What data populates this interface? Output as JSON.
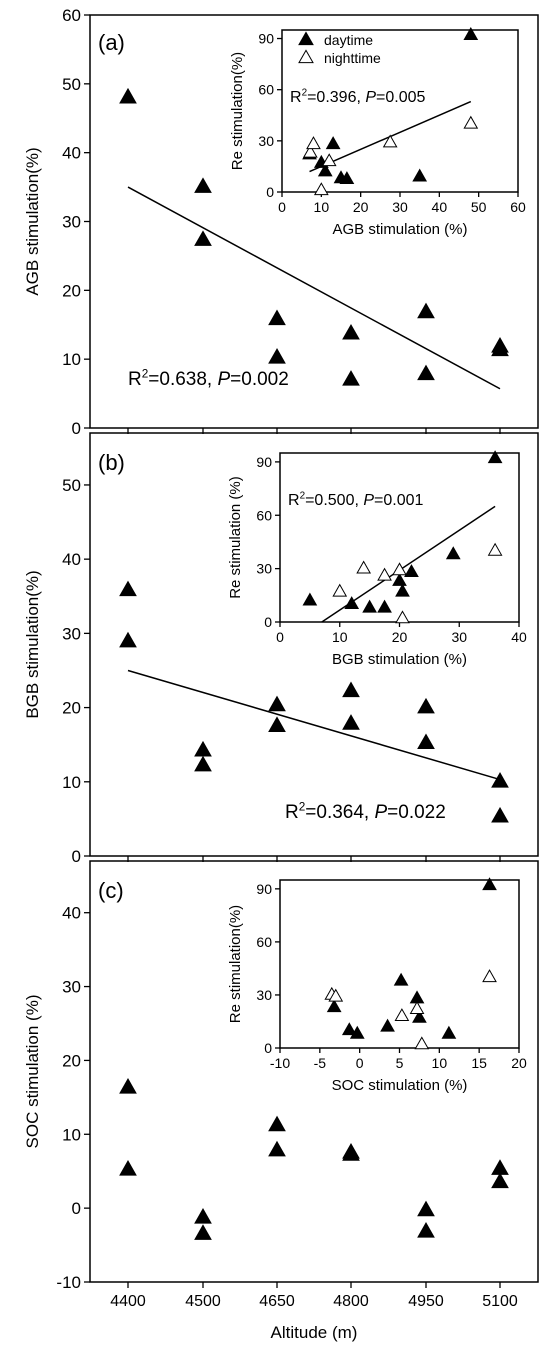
{
  "chart_data": [
    {
      "type": "scatter",
      "panel_label": "(a)",
      "xlabel": "",
      "ylabel": "AGB stimulation(%)",
      "xlim": [
        4330,
        5150
      ],
      "ylim": [
        0,
        60
      ],
      "x_ticks": [
        4400,
        4500,
        4650,
        4800,
        4950,
        5100
      ],
      "x_tick_labels": [],
      "x_positions": {
        "4400": 4400,
        "4500": 4500,
        "4650": 4650,
        "4800": 4800,
        "4950": 4950,
        "5100": 5100
      },
      "y_ticks": [
        0,
        10,
        20,
        30,
        40,
        50,
        60
      ],
      "y_tick_labels": [
        "0",
        "10",
        "20",
        "30",
        "40",
        "50",
        "60"
      ],
      "series": [
        {
          "marker": "filled",
          "points": [
            [
              4400,
              48
            ],
            [
              4500,
              35
            ],
            [
              4500,
              27.3
            ],
            [
              4650,
              15.8
            ],
            [
              4650,
              10.2
            ],
            [
              4800,
              13.7
            ],
            [
              4800,
              7
            ],
            [
              4950,
              16.8
            ],
            [
              4950,
              7.8
            ],
            [
              5100,
              11.8
            ],
            [
              5100,
              11.3
            ]
          ]
        }
      ],
      "fit": {
        "x": [
          4400,
          5100
        ],
        "y": [
          35,
          5.7
        ]
      },
      "annotation": {
        "r2_label": "R",
        "r2_sup": "2",
        "r2_rest": "=0.638,",
        "p_label": "P",
        "p_rest": "=0.002"
      },
      "inset": {
        "xlabel": "AGB stimulation (%)",
        "ylabel": "Re stimulation(%)",
        "xlim": [
          0,
          60
        ],
        "ylim": [
          0,
          95
        ],
        "x_ticks": [
          0,
          10,
          20,
          30,
          40,
          50,
          60
        ],
        "x_tick_labels": [
          "0",
          "10",
          "20",
          "30",
          "40",
          "50",
          "60"
        ],
        "y_ticks": [
          0,
          30,
          60,
          90
        ],
        "y_tick_labels": [
          "0",
          "30",
          "60",
          "90"
        ],
        "legend": [
          {
            "marker": "filled",
            "label": "daytime"
          },
          {
            "marker": "open",
            "label": "nighttime"
          }
        ],
        "series": [
          {
            "marker": "filled",
            "points": [
              [
                7,
                22
              ],
              [
                10,
                17
              ],
              [
                11,
                12
              ],
              [
                13,
                28
              ],
              [
                15,
                8
              ],
              [
                16.5,
                7.5
              ],
              [
                35,
                9
              ],
              [
                48,
                92
              ]
            ]
          },
          {
            "marker": "open",
            "points": [
              [
                7.2,
                23
              ],
              [
                8,
                28
              ],
              [
                10,
                1
              ],
              [
                12,
                18
              ],
              [
                27.5,
                29
              ],
              [
                48,
                40
              ]
            ]
          }
        ],
        "fit": {
          "x": [
            7,
            48
          ],
          "y": [
            12,
            53
          ]
        },
        "annotation": {
          "r2_label": "R",
          "r2_sup": "2",
          "r2_rest": "=0.396,",
          "p_label": "P",
          "p_rest": "=0.005"
        }
      }
    },
    {
      "type": "scatter",
      "panel_label": "(b)",
      "xlabel": "",
      "ylabel": "BGB stimulation(%)",
      "xlim": [
        4330,
        5150
      ],
      "ylim": [
        0,
        57
      ],
      "x_ticks": [
        4400,
        4500,
        4650,
        4800,
        4950,
        5100
      ],
      "x_tick_labels": [],
      "y_ticks": [
        0,
        10,
        20,
        30,
        40,
        50
      ],
      "y_tick_labels": [
        "0",
        "10",
        "20",
        "30",
        "40",
        "50"
      ],
      "series": [
        {
          "marker": "filled",
          "points": [
            [
              4400,
              35.8
            ],
            [
              4400,
              28.9
            ],
            [
              4500,
              14.2
            ],
            [
              4500,
              12.2
            ],
            [
              4650,
              20.3
            ],
            [
              4650,
              17.5
            ],
            [
              4800,
              22.2
            ],
            [
              4800,
              17.8
            ],
            [
              4950,
              20
            ],
            [
              4950,
              15.2
            ],
            [
              5100,
              10
            ],
            [
              5100,
              5.3
            ]
          ]
        }
      ],
      "fit": {
        "x": [
          4400,
          5100
        ],
        "y": [
          25,
          10.3
        ]
      },
      "annotation": {
        "r2_label": "R",
        "r2_sup": "2",
        "r2_rest": "=0.364,",
        "p_label": "P",
        "p_rest": "=0.022"
      },
      "inset": {
        "xlabel": "BGB stimulation (%)",
        "ylabel": "Re stimulation (%)",
        "xlim": [
          0,
          40
        ],
        "ylim": [
          0,
          95
        ],
        "x_ticks": [
          0,
          10,
          20,
          30,
          40
        ],
        "x_tick_labels": [
          "0",
          "10",
          "20",
          "30",
          "40"
        ],
        "y_ticks": [
          0,
          30,
          60,
          90
        ],
        "y_tick_labels": [
          "0",
          "30",
          "60",
          "90"
        ],
        "legend": [],
        "series": [
          {
            "marker": "filled",
            "points": [
              [
                5,
                12
              ],
              [
                12,
                10
              ],
              [
                15,
                8
              ],
              [
                17.5,
                8
              ],
              [
                20,
                23
              ],
              [
                20.5,
                17
              ],
              [
                22,
                28
              ],
              [
                29,
                38
              ],
              [
                36,
                92
              ]
            ]
          },
          {
            "marker": "open",
            "points": [
              [
                10,
                17
              ],
              [
                14,
                30
              ],
              [
                17.5,
                26
              ],
              [
                20,
                29
              ],
              [
                20.5,
                2
              ],
              [
                36,
                40
              ]
            ]
          }
        ],
        "fit": {
          "x": [
            7,
            36
          ],
          "y": [
            0,
            65
          ]
        },
        "annotation": {
          "r2_label": "R",
          "r2_sup": "2",
          "r2_rest": "=0.500,",
          "p_label": "P",
          "p_rest": "=0.001"
        }
      }
    },
    {
      "type": "scatter",
      "panel_label": "(c)",
      "xlabel": "Altitude (m)",
      "ylabel": "SOC stimulation (%)",
      "xlim": [
        4330,
        5150
      ],
      "ylim": [
        -10,
        47
      ],
      "x_ticks": [
        4400,
        4500,
        4650,
        4800,
        4950,
        5100
      ],
      "x_tick_labels": [
        "4400",
        "4500",
        "4650",
        "4800",
        "4950",
        "5100"
      ],
      "y_ticks": [
        -10,
        0,
        10,
        20,
        30,
        40
      ],
      "y_tick_labels": [
        "-10",
        "0",
        "10",
        "20",
        "30",
        "40"
      ],
      "series": [
        {
          "marker": "filled",
          "points": [
            [
              4400,
              16.3
            ],
            [
              4400,
              5.2
            ],
            [
              4500,
              -1.3
            ],
            [
              4500,
              -3.5
            ],
            [
              4650,
              11.2
            ],
            [
              4650,
              7.8
            ],
            [
              4800,
              7.5
            ],
            [
              4800,
              7.2
            ],
            [
              4950,
              -0.3
            ],
            [
              4950,
              -3.2
            ],
            [
              5100,
              5.3
            ],
            [
              5100,
              3.5
            ]
          ]
        }
      ],
      "fit": null,
      "annotation": null,
      "inset": {
        "xlabel": "SOC stimulation (%)",
        "ylabel": "Re stimulation(%)",
        "xlim": [
          -10,
          20
        ],
        "ylim": [
          0,
          95
        ],
        "x_ticks": [
          -10,
          -5,
          0,
          5,
          10,
          15,
          20
        ],
        "x_tick_labels": [
          "-10",
          "-5",
          "0",
          "5",
          "10",
          "15",
          "20"
        ],
        "y_ticks": [
          0,
          30,
          60,
          90
        ],
        "y_tick_labels": [
          "0",
          "30",
          "60",
          "90"
        ],
        "legend": [],
        "series": [
          {
            "marker": "filled",
            "points": [
              [
                -3.2,
                23
              ],
              [
                -1.3,
                10
              ],
              [
                -0.3,
                8
              ],
              [
                3.5,
                12
              ],
              [
                5.2,
                38
              ],
              [
                7.2,
                28
              ],
              [
                7.5,
                17
              ],
              [
                11.2,
                8
              ],
              [
                16.3,
                92
              ]
            ]
          },
          {
            "marker": "open",
            "points": [
              [
                -3.5,
                30
              ],
              [
                -3,
                29
              ],
              [
                5.3,
                18
              ],
              [
                7.2,
                22
              ],
              [
                7.8,
                2
              ],
              [
                16.3,
                40
              ]
            ]
          }
        ],
        "fit": null,
        "annotation": null
      }
    }
  ]
}
